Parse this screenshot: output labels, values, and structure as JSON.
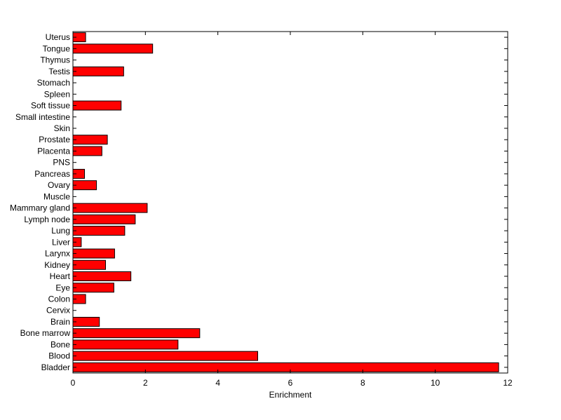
{
  "chart_data": {
    "type": "bar",
    "orientation": "horizontal",
    "title": "",
    "xlabel": "Enrichment",
    "ylabel": "",
    "xlim": [
      0,
      12
    ],
    "xticks": [
      0,
      2,
      4,
      6,
      8,
      10,
      12
    ],
    "xtick_labels": [
      "0",
      "2",
      "4",
      "6",
      "8",
      "10",
      "12"
    ],
    "grid": false,
    "bar_color": "#ff0000",
    "categories": [
      "Bladder",
      "Blood",
      "Bone",
      "Bone marrow",
      "Brain",
      "Cervix",
      "Colon",
      "Eye",
      "Heart",
      "Kidney",
      "Larynx",
      "Liver",
      "Lung",
      "Lymph node",
      "Mammary gland",
      "Muscle",
      "Ovary",
      "Pancreas",
      "PNS",
      "Placenta",
      "Prostate",
      "Skin",
      "Small intestine",
      "Soft tissue",
      "Spleen",
      "Stomach",
      "Testis",
      "Thymus",
      "Tongue",
      "Uterus"
    ],
    "values": [
      11.75,
      5.1,
      2.9,
      3.5,
      0.73,
      0,
      0.35,
      1.13,
      1.6,
      0.9,
      1.15,
      0.23,
      1.43,
      1.72,
      2.05,
      0,
      0.65,
      0.32,
      0,
      0.8,
      0.95,
      0,
      0,
      1.33,
      0,
      0,
      1.4,
      0,
      2.2,
      0.35
    ]
  }
}
